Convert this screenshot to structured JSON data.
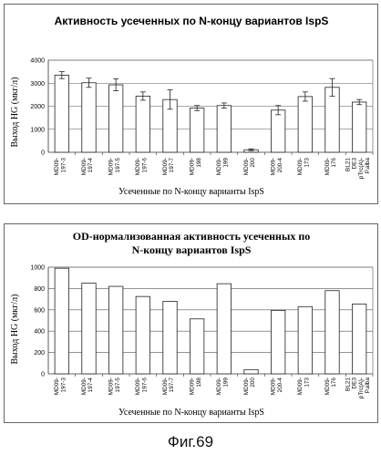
{
  "chart_data": [
    {
      "type": "bar",
      "title": "Активность усеченных по N-концу вариантов IspS",
      "ylabel": "Выход HG (мкг/л)",
      "xlabel": "Усеченные по N-концу варианты IspS",
      "ylim": [
        0,
        4000
      ],
      "yticks": [
        0,
        1000,
        2000,
        3000,
        4000
      ],
      "grid": true,
      "categories": [
        [
          "MD09-",
          "197-3"
        ],
        [
          "MD09-",
          "197-4"
        ],
        [
          "MD09-",
          "197-5"
        ],
        [
          "MD09-",
          "197-6"
        ],
        [
          "MD09-",
          "197-7"
        ],
        [
          "MD09-",
          "198"
        ],
        [
          "MD09-",
          "199"
        ],
        [
          "MD09-",
          "200"
        ],
        [
          "MD09-",
          "200-4"
        ],
        [
          "MD09-",
          "173"
        ],
        [
          "MD09-",
          "176"
        ],
        [
          "BL21",
          "DE3",
          "pTrc(A)-",
          "P.alba"
        ]
      ],
      "values": [
        3350,
        3020,
        2930,
        2440,
        2290,
        1920,
        2030,
        110,
        1830,
        2420,
        2820,
        2180
      ],
      "errors": [
        150,
        200,
        260,
        180,
        420,
        110,
        110,
        40,
        200,
        200,
        380,
        110
      ]
    },
    {
      "type": "bar",
      "title": "OD-нормализованная активность усеченных по",
      "title2": "N-концу вариантов IspS",
      "ylabel": "Выход HG (мкг/л)",
      "xlabel": "Усеченные по N-концу варианты IspS",
      "ylim": [
        0,
        1000
      ],
      "yticks": [
        0,
        200,
        400,
        600,
        800,
        1000
      ],
      "grid": true,
      "categories": [
        [
          "MD09-",
          "197-3"
        ],
        [
          "MD09-",
          "197-4"
        ],
        [
          "MD09-",
          "197-5"
        ],
        [
          "MD09-",
          "197-6"
        ],
        [
          "MD09-",
          "197-7"
        ],
        [
          "MD09-",
          "198"
        ],
        [
          "MD09-",
          "199"
        ],
        [
          "MD09-",
          "200"
        ],
        [
          "MD09-",
          "200-4"
        ],
        [
          "MD09-",
          "173"
        ],
        [
          "MD09-",
          "176"
        ],
        [
          "BL21",
          "DE3",
          "pTrc(A)-",
          "P.alba"
        ]
      ],
      "values": [
        990,
        850,
        820,
        725,
        680,
        515,
        845,
        40,
        595,
        630,
        780,
        655
      ],
      "errors": []
    }
  ],
  "caption": "Фиг.69"
}
